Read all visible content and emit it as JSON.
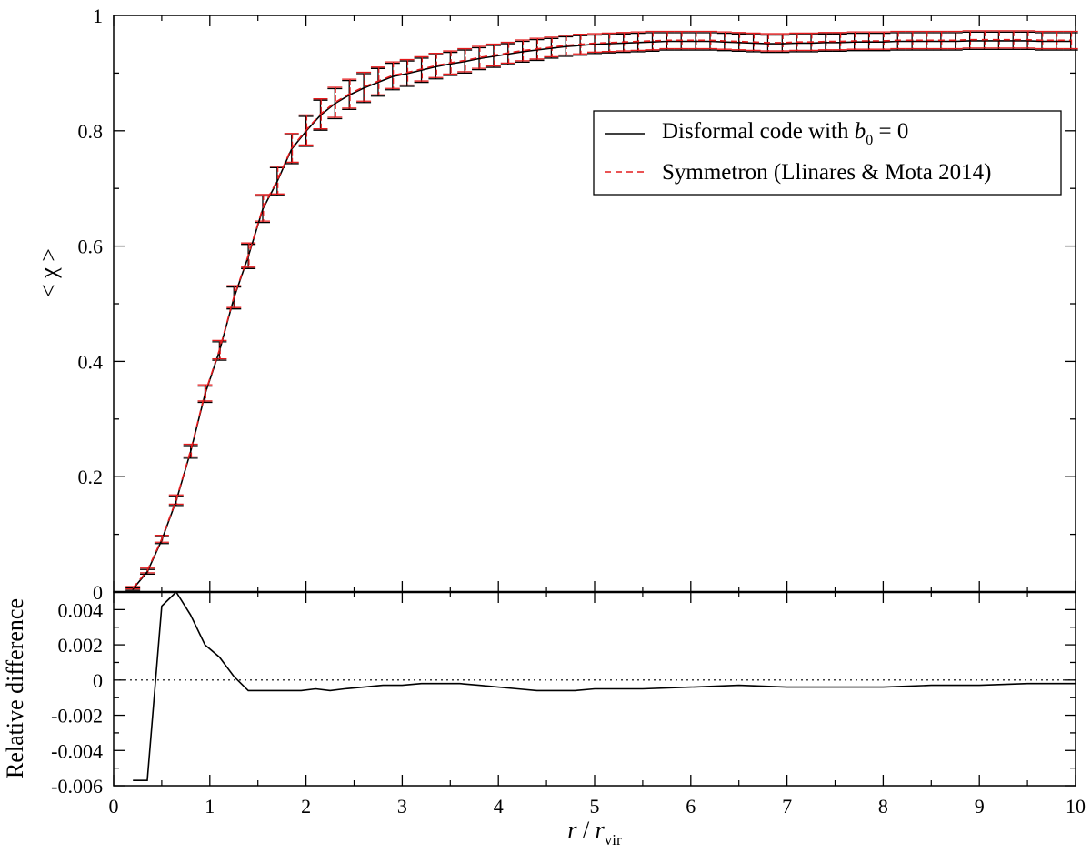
{
  "chart_data": [
    {
      "type": "line",
      "panel": "main",
      "xlim": [
        0,
        10
      ],
      "ylim": [
        0,
        1
      ],
      "x_ticks": [
        0,
        1,
        2,
        3,
        4,
        5,
        6,
        7,
        8,
        9,
        10
      ],
      "y_ticks": [
        0.2,
        0.4,
        0.6,
        0.8,
        1
      ],
      "y_tick_labels": [
        "0.2",
        "0.4",
        "0.6",
        "0.8",
        "1"
      ],
      "ylabel": "< χ >",
      "grid": false,
      "legend_position": "top-right",
      "colors": {
        "disformal": "#000000",
        "symmetron": "#e41a1c"
      },
      "series": [
        {
          "name": "Disformal code with b_0 = 0",
          "legend_parts": {
            "prefix": "Disformal code with ",
            "var": "b",
            "sub": "0",
            "suffix": " = 0"
          },
          "style": "solid",
          "color": "#000000"
        },
        {
          "name": "Symmetron (Llinares & Mota 2014)",
          "style": "dashed",
          "color": "#e41a1c"
        }
      ],
      "x": [
        0.2,
        0.35,
        0.5,
        0.65,
        0.8,
        0.95,
        1.1,
        1.25,
        1.4,
        1.55,
        1.7,
        1.85,
        2.0,
        2.15,
        2.3,
        2.45,
        2.6,
        2.75,
        2.9,
        3.05,
        3.2,
        3.35,
        3.5,
        3.65,
        3.8,
        3.95,
        4.1,
        4.25,
        4.4,
        4.55,
        4.7,
        4.85,
        5.0,
        5.15,
        5.3,
        5.45,
        5.6,
        5.75,
        5.9,
        6.05,
        6.2,
        6.35,
        6.5,
        6.65,
        6.8,
        6.95,
        7.1,
        7.25,
        7.4,
        7.55,
        7.7,
        7.85,
        8.0,
        8.15,
        8.3,
        8.45,
        8.6,
        8.75,
        8.9,
        9.05,
        9.2,
        9.35,
        9.5,
        9.65,
        9.8,
        9.95
      ],
      "y": [
        0.005,
        0.035,
        0.09,
        0.158,
        0.243,
        0.343,
        0.418,
        0.51,
        0.582,
        0.664,
        0.712,
        0.768,
        0.799,
        0.827,
        0.847,
        0.862,
        0.874,
        0.884,
        0.894,
        0.899,
        0.905,
        0.911,
        0.916,
        0.92,
        0.925,
        0.929,
        0.933,
        0.937,
        0.94,
        0.943,
        0.946,
        0.948,
        0.95,
        0.951,
        0.952,
        0.953,
        0.954,
        0.955,
        0.955,
        0.955,
        0.955,
        0.954,
        0.953,
        0.952,
        0.951,
        0.951,
        0.952,
        0.952,
        0.953,
        0.953,
        0.954,
        0.954,
        0.954,
        0.955,
        0.955,
        0.955,
        0.955,
        0.955,
        0.956,
        0.956,
        0.956,
        0.956,
        0.956,
        0.955,
        0.955,
        0.955
      ],
      "error_half_width": [
        0.002,
        0.004,
        0.006,
        0.008,
        0.011,
        0.014,
        0.016,
        0.019,
        0.021,
        0.023,
        0.024,
        0.025,
        0.026,
        0.026,
        0.026,
        0.025,
        0.025,
        0.024,
        0.023,
        0.022,
        0.021,
        0.021,
        0.02,
        0.02,
        0.019,
        0.019,
        0.018,
        0.018,
        0.018,
        0.017,
        0.017,
        0.017,
        0.016,
        0.016,
        0.016,
        0.016,
        0.016,
        0.015,
        0.015,
        0.015,
        0.015,
        0.015,
        0.015,
        0.015,
        0.015,
        0.015,
        0.015,
        0.015,
        0.015,
        0.015,
        0.015,
        0.015,
        0.015,
        0.015,
        0.015,
        0.015,
        0.015,
        0.015,
        0.015,
        0.015,
        0.015,
        0.015,
        0.015,
        0.015,
        0.015,
        0.015
      ]
    },
    {
      "type": "line",
      "panel": "residual",
      "xlim": [
        0,
        10
      ],
      "ylim": [
        -0.006,
        0.005
      ],
      "x_ticks": [
        0,
        1,
        2,
        3,
        4,
        5,
        6,
        7,
        8,
        9,
        10
      ],
      "x_tick_labels": [
        "0",
        "1",
        "2",
        "3",
        "4",
        "5",
        "6",
        "7",
        "8",
        "9",
        "10"
      ],
      "y_ticks": [
        -0.006,
        -0.004,
        -0.002,
        0,
        0.002,
        0.004
      ],
      "y_tick_labels": [
        "-0.006",
        "-0.004",
        "-0.002",
        "0",
        "0.002",
        "0.004"
      ],
      "ylabel": "Relative difference",
      "xlabel_parts": {
        "r": "r",
        "slash": " / ",
        "r2": "r",
        "sub": "vir"
      },
      "reference_line": {
        "y": 0,
        "style": "dotted"
      },
      "x": [
        0.2,
        0.35,
        0.5,
        0.65,
        0.8,
        0.95,
        1.1,
        1.25,
        1.4,
        1.55,
        1.7,
        1.85,
        1.95,
        2.1,
        2.25,
        2.4,
        2.6,
        2.8,
        3.0,
        3.2,
        3.4,
        3.6,
        3.8,
        4.0,
        4.2,
        4.4,
        4.6,
        4.8,
        5.0,
        5.5,
        6.0,
        6.5,
        7.0,
        7.5,
        8.0,
        8.5,
        9.0,
        9.5,
        10.0
      ],
      "y": [
        -0.0057,
        -0.0057,
        0.0042,
        0.005,
        0.0037,
        0.002,
        0.0013,
        0.0002,
        -0.0006,
        -0.0006,
        -0.0006,
        -0.0006,
        -0.0006,
        -0.0005,
        -0.0006,
        -0.0005,
        -0.0004,
        -0.0003,
        -0.0003,
        -0.0002,
        -0.0002,
        -0.0002,
        -0.0003,
        -0.0004,
        -0.0005,
        -0.0006,
        -0.0006,
        -0.0006,
        -0.0005,
        -0.0005,
        -0.0004,
        -0.0003,
        -0.0004,
        -0.0004,
        -0.0004,
        -0.0003,
        -0.0003,
        -0.0002,
        -0.0002
      ]
    }
  ]
}
